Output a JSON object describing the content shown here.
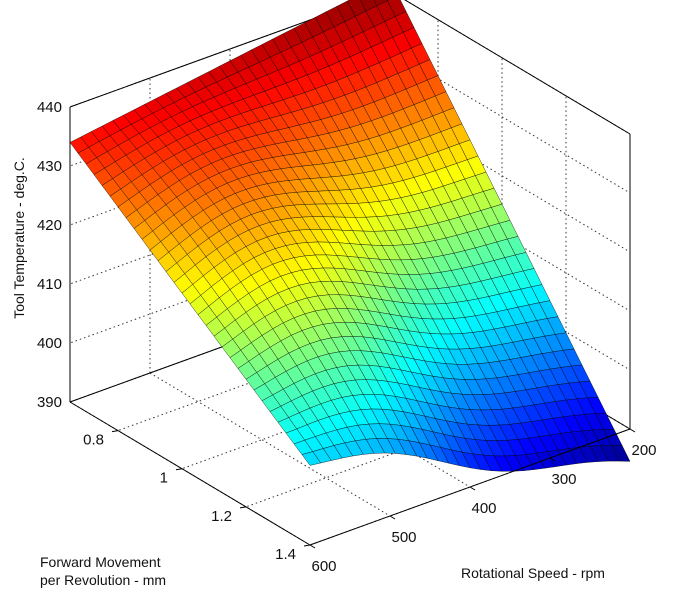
{
  "chart_data": {
    "type": "surface",
    "title": "",
    "xlabel": "Rotational Speed - rpm",
    "ylabel_lines": [
      "Forward Movement",
      "per Revolution - mm"
    ],
    "zlabel": "Tool Temperature - deg.C.",
    "x_ticks": [
      "200",
      "300",
      "400",
      "500",
      "600"
    ],
    "y_ticks": [
      "0.8",
      "1",
      "1.2",
      "1.4"
    ],
    "z_ticks": [
      "390",
      "400",
      "410",
      "420",
      "430",
      "440"
    ],
    "xlim": [
      200,
      600
    ],
    "ylim": [
      0.65,
      1.4
    ],
    "zlim": [
      390,
      440
    ],
    "grid": true,
    "colormap": "jet",
    "grid_resolution": [
      30,
      30
    ],
    "corner_values": [
      {
        "x": 200,
        "y": 0.65,
        "z": 442
      },
      {
        "x": 600,
        "y": 0.65,
        "z": 434
      },
      {
        "x": 600,
        "y": 1.4,
        "z": 404
      },
      {
        "x": 200,
        "y": 1.4,
        "z": 384
      }
    ]
  }
}
